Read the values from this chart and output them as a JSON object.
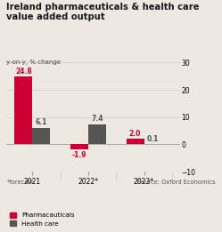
{
  "title_line1": "Ireland pharmaceuticals & health care",
  "title_line2": "value added output",
  "subtitle": "y-on-y, % change",
  "categories": [
    "2021",
    "2022*",
    "2023*"
  ],
  "pharma_values": [
    24.8,
    -1.9,
    2.0
  ],
  "health_values": [
    6.1,
    7.4,
    0.1
  ],
  "pharma_color": "#cc0033",
  "health_color": "#555555",
  "bar_width": 0.32,
  "ylim": [
    -10,
    30
  ],
  "yticks": [
    -10,
    0,
    10,
    20,
    30
  ],
  "footnote": "*forecast",
  "source": "Source: Oxford Economics",
  "legend_pharma": "Pharmacauticals",
  "legend_health": "Health care",
  "bg_color": "#ede8e2"
}
